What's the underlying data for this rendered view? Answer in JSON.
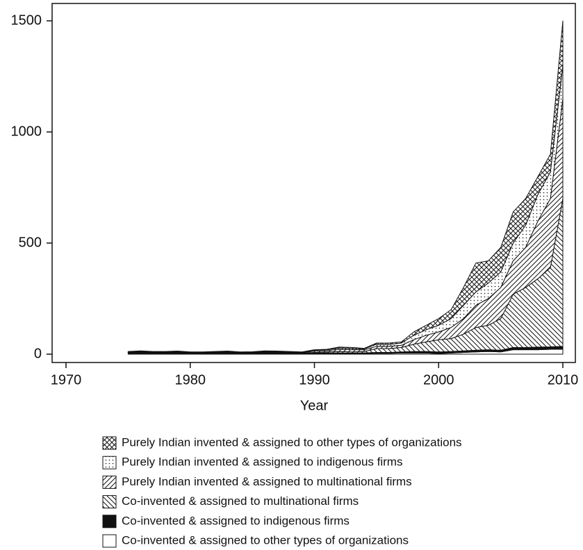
{
  "chart_data": {
    "type": "stacked_area",
    "x_label": "Year",
    "x": [
      1975,
      1976,
      1977,
      1978,
      1979,
      1980,
      1981,
      1982,
      1983,
      1984,
      1985,
      1986,
      1987,
      1988,
      1989,
      1990,
      1991,
      1992,
      1993,
      1994,
      1995,
      1996,
      1997,
      1998,
      1999,
      2000,
      2001,
      2002,
      2003,
      2004,
      2005,
      2006,
      2007,
      2008,
      2009,
      2010
    ],
    "xlim": [
      1970,
      2010
    ],
    "xticks": [
      1970,
      1980,
      1990,
      2000,
      2010
    ],
    "ylim": [
      0,
      1500
    ],
    "yticks": [
      0,
      500,
      1000,
      1500
    ],
    "series": [
      {
        "name": "Co-invented & assigned to other types of organizations",
        "pattern": "white",
        "values": [
          3,
          3,
          3,
          3,
          3,
          2,
          2,
          3,
          3,
          2,
          2,
          3,
          3,
          3,
          2,
          3,
          3,
          3,
          3,
          3,
          4,
          4,
          5,
          5,
          5,
          3,
          5,
          8,
          10,
          12,
          10,
          20,
          20,
          20,
          22,
          22
        ]
      },
      {
        "name": "Co-invented & assigned to indigenous firms",
        "pattern": "black",
        "values": [
          2,
          2,
          2,
          2,
          2,
          2,
          2,
          2,
          2,
          2,
          2,
          2,
          2,
          2,
          2,
          2,
          3,
          3,
          2,
          3,
          4,
          4,
          5,
          7,
          7,
          7,
          7,
          7,
          8,
          8,
          8,
          10,
          10,
          12,
          11,
          13
        ]
      },
      {
        "name": "Co-invented & assigned to multinational firms",
        "pattern": "backhatch",
        "values": [
          1,
          1,
          1,
          1,
          1,
          1,
          1,
          1,
          1,
          1,
          1,
          1,
          1,
          1,
          1,
          3,
          4,
          6,
          5,
          6,
          17,
          17,
          20,
          33,
          43,
          55,
          58,
          75,
          102,
          110,
          142,
          240,
          270,
          308,
          357,
          665
        ]
      },
      {
        "name": "Purely Indian invented & assigned to multinational firms",
        "pattern": "hatch",
        "values": [
          2,
          3,
          2,
          2,
          3,
          2,
          2,
          2,
          3,
          2,
          2,
          3,
          2,
          2,
          2,
          6,
          6,
          10,
          10,
          8,
          10,
          10,
          10,
          20,
          30,
          35,
          50,
          70,
          100,
          120,
          140,
          150,
          180,
          260,
          310,
          450
        ]
      },
      {
        "name": "Purely Indian invented & assigned to indigenous firms",
        "pattern": "dots",
        "values": [
          2,
          3,
          2,
          2,
          2,
          1,
          2,
          2,
          2,
          2,
          2,
          3,
          3,
          2,
          1,
          4,
          4,
          6,
          6,
          4,
          10,
          9,
          10,
          20,
          25,
          30,
          40,
          60,
          60,
          70,
          70,
          80,
          100,
          120,
          120,
          150
        ]
      },
      {
        "name": "Purely Indian invented & assigned to other types of organizations",
        "pattern": "crosshatch",
        "values": [
          2,
          3,
          2,
          2,
          3,
          2,
          1,
          2,
          3,
          1,
          2,
          3,
          3,
          2,
          2,
          2,
          2,
          4,
          4,
          2,
          5,
          6,
          5,
          15,
          20,
          30,
          40,
          80,
          130,
          100,
          110,
          140,
          120,
          80,
          80,
          200
        ]
      }
    ]
  }
}
